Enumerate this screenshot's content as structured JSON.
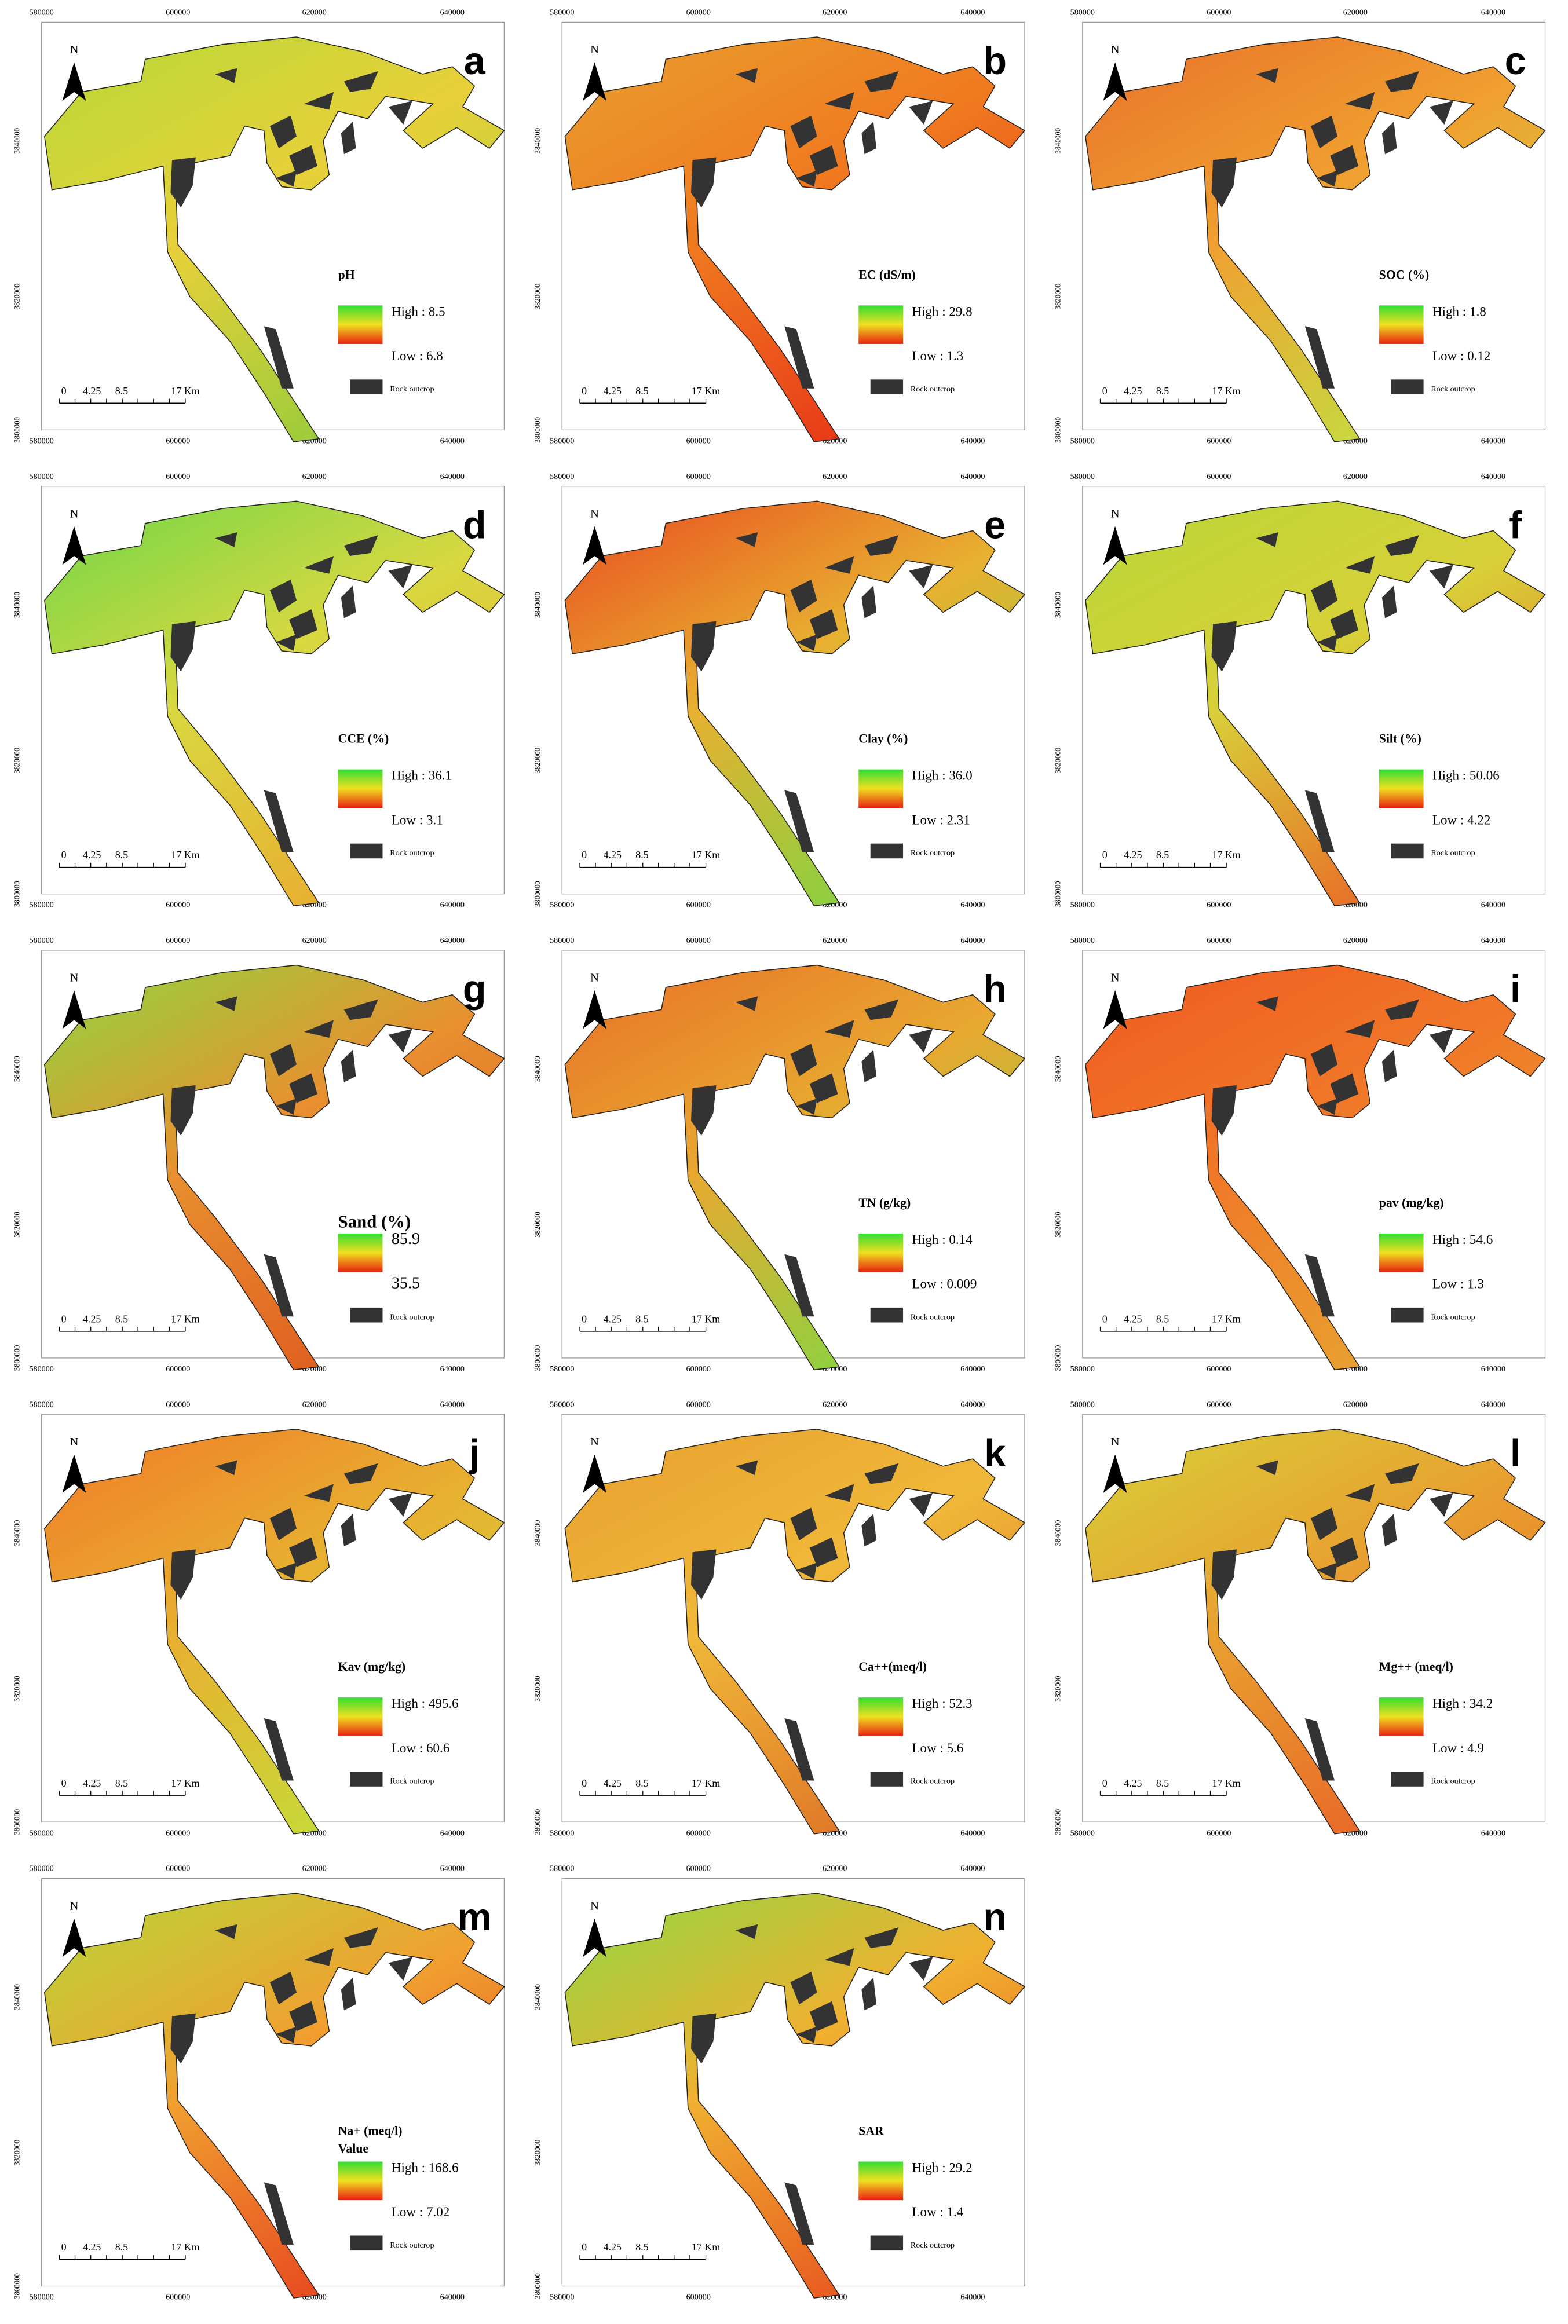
{
  "frame": {
    "xticks": [
      580000,
      600000,
      620000,
      640000
    ],
    "yticks": [
      3840000,
      3820000,
      3800000
    ],
    "scale_labels": [
      "0",
      "4.25",
      "8.5",
      "17 Km"
    ],
    "north": "N",
    "rock": "Rock outcrop"
  },
  "panels": [
    {
      "letter": "a",
      "legend_title": "pH",
      "high": "High : 8.5",
      "low": "Low : 6.8"
    },
    {
      "letter": "b",
      "legend_title": "EC (dS/m)",
      "high": "High : 29.8",
      "low": "Low : 1.3"
    },
    {
      "letter": "c",
      "legend_title": "SOC (%)",
      "high": "High : 1.8",
      "low": "Low : 0.12"
    },
    {
      "letter": "d",
      "legend_title": "CCE (%)",
      "high": "High : 36.1",
      "low": "Low : 3.1"
    },
    {
      "letter": "e",
      "legend_title": "Clay (%)",
      "high": "High : 36.0",
      "low": "Low : 2.31"
    },
    {
      "letter": "f",
      "legend_title": "Silt (%)",
      "high": "High : 50.06",
      "low": "Low : 4.22"
    },
    {
      "letter": "g",
      "legend_title": "Sand (%)",
      "high": "85.9",
      "low": "35.5"
    },
    {
      "letter": "h",
      "legend_title": "TN (g/kg)",
      "high": "High : 0.14",
      "low": "Low : 0.009"
    },
    {
      "letter": "i",
      "legend_title": "pav (mg/kg)",
      "high": "High : 54.6",
      "low": "Low : 1.3"
    },
    {
      "letter": "j",
      "legend_title": "Kav (mg/kg)",
      "high": "High : 495.6",
      "low": "Low : 60.6"
    },
    {
      "letter": "k",
      "legend_title": "Ca++(meq/l)",
      "high": "High : 52.3",
      "low": "Low : 5.6"
    },
    {
      "letter": "l",
      "legend_title": "Mg++ (meq/l)",
      "high": "High : 34.2",
      "low": "Low : 4.9"
    },
    {
      "letter": "m",
      "legend_title": "Na+ (meq/l)",
      "subtitle": "Value",
      "high": "High : 168.6",
      "low": "Low : 7.02"
    },
    {
      "letter": "n",
      "legend_title": "SAR",
      "high": "High : 29.2",
      "low": "Low : 1.4"
    }
  ]
}
